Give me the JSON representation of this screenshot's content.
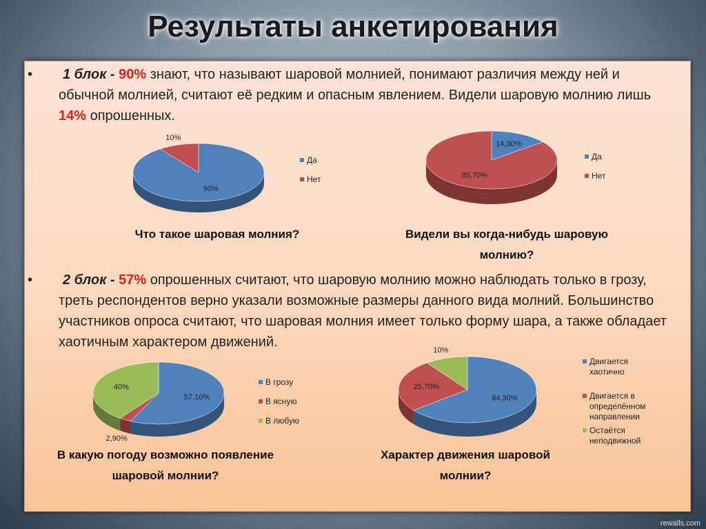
{
  "title": "Результаты анкетирования",
  "bullets": [
    [
      "1 блок - ",
      "90%",
      " знают, что называют шаровой молнией, понимают различия между ней и обычной молнией, считают её редким и опасным явлением.  Видели шаровую молнию лишь ",
      "14%",
      " опрошенных."
    ],
    [
      "2 блок - ",
      "57%",
      " опрошенных считают, что шаровую молнию можно наблюдать только в грозу,  треть респондентов верно указали возможные размеры данного вида молний.  Большинство участников опроса считают, что шаровая молния имеет только форму шара, а также обладает хаотичным характером движений."
    ]
  ],
  "watermark": "rewalls.com",
  "chart_data": [
    {
      "type": "pie",
      "title": "Что такое шаровая молния?",
      "categories": [
        "Да",
        "Нет"
      ],
      "values": [
        90,
        10
      ],
      "value_labels": [
        "90%",
        "10%"
      ],
      "colors": [
        "#4f81bd",
        "#c0504d"
      ]
    },
    {
      "type": "pie",
      "title": "Видели вы когда-нибудь шаровую молнию?",
      "categories": [
        "Да",
        "Нет"
      ],
      "values": [
        14.3,
        85.7
      ],
      "value_labels": [
        "14,30%",
        "85,70%"
      ],
      "colors": [
        "#4f81bd",
        "#c0504d"
      ]
    },
    {
      "type": "pie",
      "title": "В какую погоду возможно появление шаровой молнии?",
      "categories": [
        "В грозу",
        "В ясную",
        "В любую"
      ],
      "values": [
        57.1,
        2.9,
        40
      ],
      "value_labels": [
        "57,10%",
        "2,90%",
        "40%"
      ],
      "colors": [
        "#4f81bd",
        "#c0504d",
        "#9bbb59"
      ]
    },
    {
      "type": "pie",
      "title": "Характер движения шаровой молнии?",
      "categories": [
        "Двигается хаотично",
        "Двигается в определённом направлении",
        "Остаётся неподвижной"
      ],
      "values": [
        64.3,
        25.7,
        10
      ],
      "value_labels": [
        "64,30%",
        "25,70%",
        "10%"
      ],
      "colors": [
        "#4f81bd",
        "#c0504d",
        "#9bbb59"
      ]
    }
  ]
}
